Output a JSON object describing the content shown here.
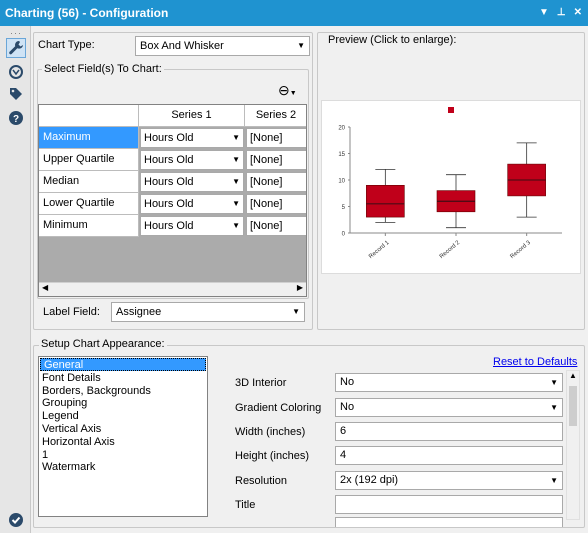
{
  "window": {
    "title": "Charting (56) - Configuration"
  },
  "config": {
    "chart_type_label": "Chart Type:",
    "chart_type_value": "Box And Whisker",
    "select_fields_label": "Select Field(s) To Chart:",
    "grid": {
      "headers": [
        "Series 1",
        "Series 2"
      ],
      "rows": [
        {
          "label": "Maximum",
          "s1": "Hours Old",
          "s2": "[None]"
        },
        {
          "label": "Upper Quartile",
          "s1": "Hours Old",
          "s2": "[None]"
        },
        {
          "label": "Median",
          "s1": "Hours Old",
          "s2": "[None]"
        },
        {
          "label": "Lower Quartile",
          "s1": "Hours Old",
          "s2": "[None]"
        },
        {
          "label": "Minimum",
          "s1": "Hours Old",
          "s2": "[None]"
        }
      ]
    },
    "label_field_label": "Label Field:",
    "label_field_value": "Assignee"
  },
  "preview": {
    "label": "Preview (Click to enlarge):",
    "chart_data": {
      "type": "box",
      "categories": [
        "Record 1",
        "Record 2",
        "Record 3"
      ],
      "series": [
        {
          "values": [
            {
              "min": 2,
              "q1": 3,
              "median": 5.5,
              "q3": 9,
              "max": 12
            },
            {
              "min": 1,
              "q1": 4,
              "median": 6,
              "q3": 8,
              "max": 11
            },
            {
              "min": 3,
              "q1": 7,
              "median": 10,
              "q3": 13,
              "max": 17
            }
          ]
        }
      ],
      "yticks": [
        "0",
        "5",
        "10",
        "15",
        "20"
      ],
      "ylim": [
        0,
        20
      ],
      "color": "#c0001a"
    }
  },
  "appearance": {
    "section_label": "Setup Chart Appearance:",
    "reset_label": "Reset to Defaults",
    "list": [
      "General",
      "Font Details",
      "Borders, Backgrounds",
      "Grouping",
      "Legend",
      "Vertical Axis",
      "Horizontal Axis",
      "1",
      "Watermark"
    ],
    "props": {
      "interior_label": "3D Interior",
      "interior_value": "No",
      "gradient_label": "Gradient Coloring",
      "gradient_value": "No",
      "width_label": "Width (inches)",
      "width_value": "6",
      "height_label": "Height (inches)",
      "height_value": "4",
      "resolution_label": "Resolution",
      "resolution_value": "2x (192 dpi)",
      "title_label": "Title",
      "title_value": ""
    }
  }
}
